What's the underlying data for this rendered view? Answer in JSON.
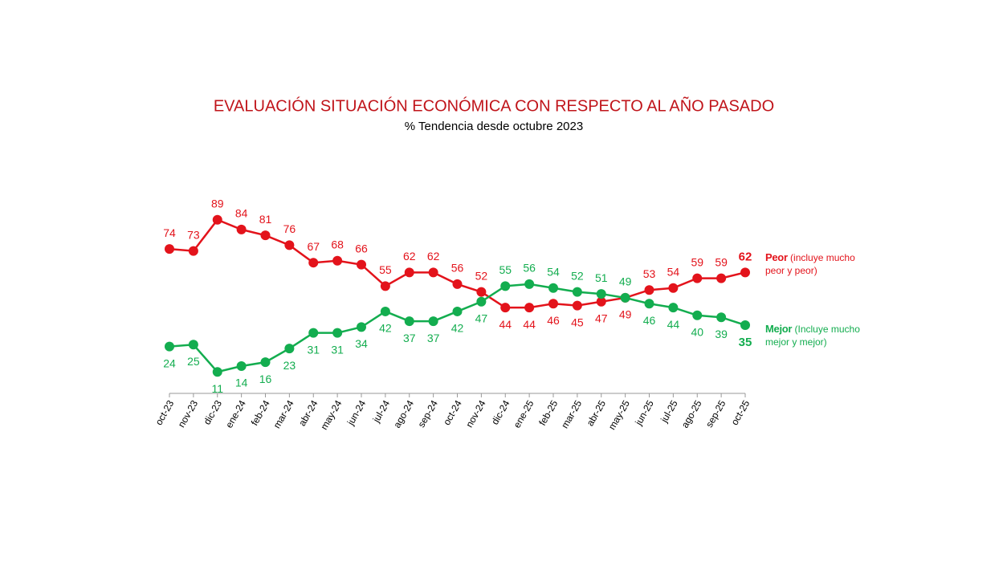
{
  "chart_data": {
    "type": "line",
    "title": "EVALUACIÓN SITUACIÓN ECONÓMICA CON RESPECTO AL AÑO PASADO",
    "subtitle": "% Tendencia desde octubre 2023",
    "categories": [
      "oct-23",
      "nov-23",
      "dic-23",
      "ene-24",
      "feb-24",
      "mar-24",
      "abr-24",
      "may-24",
      "jun-24",
      "jul-24",
      "ago-24",
      "sep-24",
      "oct-24",
      "nov-24",
      "dic-24",
      "ene-25",
      "feb-25",
      "mar-25",
      "abr-25",
      "may-25",
      "jun-25",
      "jul-25",
      "ago-25",
      "sep-25",
      "oct-25"
    ],
    "ylim": [
      0,
      100
    ],
    "series": [
      {
        "name": "Peor",
        "legend_detail": "(incluye mucho peor y peor)",
        "color": "#e3131b",
        "values": [
          74,
          73,
          89,
          84,
          81,
          76,
          67,
          68,
          66,
          55,
          62,
          62,
          56,
          52,
          44,
          44,
          46,
          45,
          47,
          49,
          53,
          54,
          59,
          59,
          62
        ]
      },
      {
        "name": "Mejor",
        "legend_detail": "(Incluye mucho mejor y mejor)",
        "color": "#13ad4f",
        "values": [
          24,
          25,
          11,
          14,
          16,
          23,
          31,
          31,
          34,
          42,
          37,
          37,
          42,
          47,
          55,
          56,
          54,
          52,
          51,
          49,
          46,
          44,
          40,
          39,
          35
        ]
      }
    ]
  }
}
